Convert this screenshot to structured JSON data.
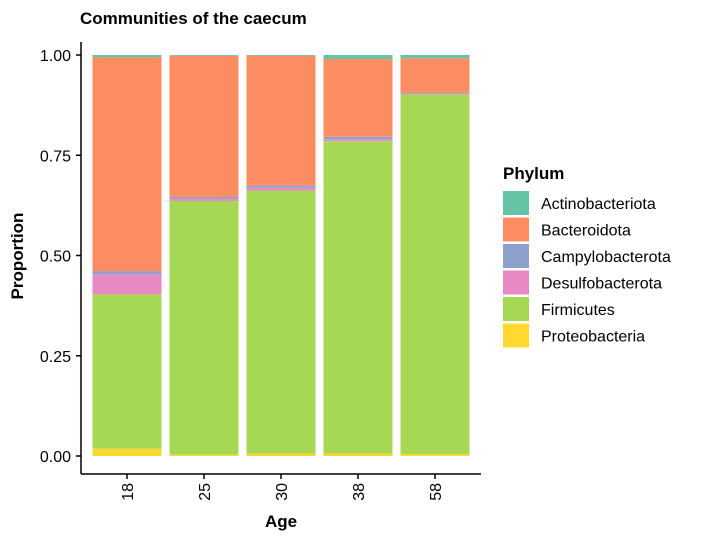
{
  "chart_data": {
    "type": "bar",
    "stacked": true,
    "title": "Communities of the caecum",
    "xlabel": "Age",
    "ylabel": "Proportion",
    "ylim": [
      0,
      1
    ],
    "yticks": [
      "0.00",
      "0.25",
      "0.50",
      "0.75",
      "1.00"
    ],
    "categories": [
      "18",
      "25",
      "30",
      "38",
      "58"
    ],
    "legend_title": "Phylum",
    "legend_position": "right",
    "grid": false,
    "series": [
      {
        "name": "Proteobacteria",
        "color": "#FFD92F",
        "values": [
          0.018,
          0.003,
          0.006,
          0.006,
          0.005
        ]
      },
      {
        "name": "Firmicutes",
        "color": "#A6D854",
        "values": [
          0.385,
          0.633,
          0.656,
          0.779,
          0.897
        ]
      },
      {
        "name": "Desulfobacterota",
        "color": "#E78AC3",
        "values": [
          0.05,
          0.006,
          0.007,
          0.005,
          0.002
        ]
      },
      {
        "name": "Campylobacterota",
        "color": "#8DA0CB",
        "values": [
          0.008,
          0.004,
          0.005,
          0.006,
          0.002
        ]
      },
      {
        "name": "Bacteroidota",
        "color": "#FC8D62",
        "values": [
          0.533,
          0.352,
          0.324,
          0.194,
          0.086
        ]
      },
      {
        "name": "Actinobacteriota",
        "color": "#66C2A5",
        "values": [
          0.006,
          0.002,
          0.002,
          0.01,
          0.008
        ]
      }
    ]
  }
}
